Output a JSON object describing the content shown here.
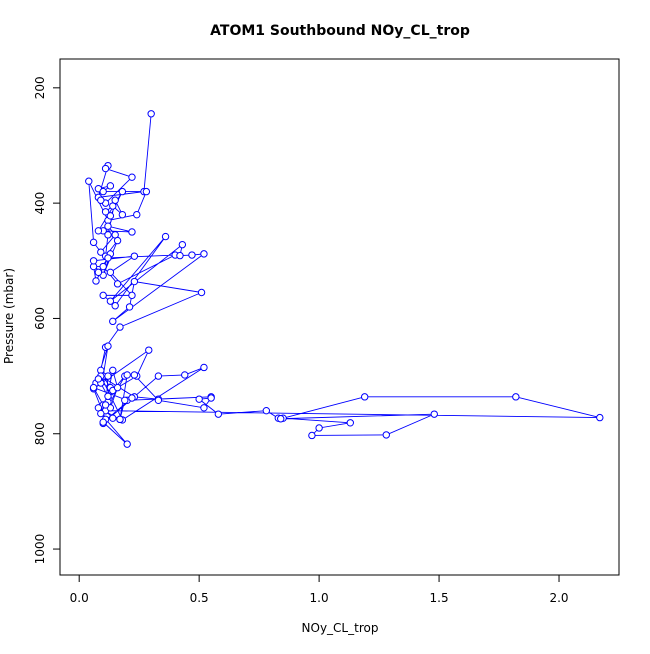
{
  "chart_data": {
    "type": "line",
    "title": "ATOM1 Southbound NOy_CL_trop",
    "xlabel": "NOy_CL_trop",
    "ylabel": "Pressure (mbar)",
    "xlim": [
      -0.08,
      2.25
    ],
    "ylim": [
      1045,
      150
    ],
    "y_reversed": true,
    "grid": false,
    "legend": "none",
    "x_ticks": [
      {
        "value": 0.0,
        "label": "0.0"
      },
      {
        "value": 0.5,
        "label": "0.5"
      },
      {
        "value": 1.0,
        "label": "1.0"
      },
      {
        "value": 1.5,
        "label": "1.5"
      },
      {
        "value": 2.0,
        "label": "2.0"
      }
    ],
    "y_ticks": [
      {
        "value": 200,
        "label": "200"
      },
      {
        "value": 400,
        "label": "400"
      },
      {
        "value": 600,
        "label": "600"
      },
      {
        "value": 800,
        "label": "800"
      },
      {
        "value": 1000,
        "label": "1000"
      }
    ],
    "colors": {
      "series": "#0000ff",
      "axis": "#000000"
    },
    "series": [
      {
        "x": [
          0.3,
          0.27,
          0.08,
          0.12,
          0.11,
          0.22,
          0.11,
          0.09,
          0.08,
          0.13,
          0.1,
          0.28,
          0.24,
          0.12,
          0.04,
          0.06,
          0.09,
          0.15,
          0.12,
          0.22,
          0.1,
          0.08,
          0.18,
          0.13,
          0.11,
          0.14,
          0.18,
          0.15,
          0.12,
          0.11,
          0.16,
          0.1,
          0.13,
          0.07,
          0.06,
          0.1,
          0.16,
          0.4,
          0.12,
          0.08,
          0.06,
          0.23,
          0.13,
          0.22,
          0.1,
          0.15,
          0.36,
          0.13,
          0.43,
          0.42,
          0.47,
          0.52,
          0.14,
          0.21,
          0.23,
          0.51,
          0.17,
          0.11,
          0.09,
          0.07,
          0.12,
          0.1,
          0.13,
          0.09,
          0.12,
          0.11,
          0.19,
          0.14,
          0.24,
          0.29,
          0.06,
          0.11,
          0.1,
          0.33,
          0.44,
          0.52,
          0.18,
          0.09,
          0.23,
          0.33,
          0.55,
          0.2,
          0.06,
          0.1,
          0.08,
          0.17,
          0.2,
          0.23,
          0.33,
          0.52,
          0.55,
          0.5,
          0.58,
          0.78,
          0.83,
          0.85,
          1.13,
          1.0,
          0.97,
          1.28,
          1.48,
          0.84,
          1.19,
          1.82,
          2.17,
          0.11,
          0.14,
          0.17,
          0.19,
          0.22,
          0.1,
          0.2,
          0.09,
          0.12,
          0.13,
          0.16,
          0.14,
          0.11,
          0.12,
          0.08
        ],
        "y": [
          245,
          380,
          390,
          335,
          340,
          355,
          400,
          395,
          375,
          370,
          380,
          380,
          420,
          430,
          362,
          468,
          485,
          455,
          440,
          450,
          448,
          448,
          380,
          422,
          415,
          405,
          420,
          395,
          455,
          492,
          465,
          525,
          488,
          535,
          510,
          510,
          540,
          490,
          495,
          520,
          500,
          492,
          520,
          560,
          560,
          578,
          458,
          570,
          472,
          491,
          490,
          488,
          605,
          580,
          536,
          555,
          615,
          650,
          690,
          712,
          648,
          700,
          720,
          712,
          700,
          760,
          700,
          725,
          700,
          655,
          722,
          775,
          782,
          700,
          698,
          685,
          776,
          700,
          736,
          740,
          736,
          742,
          720,
          750,
          755,
          775,
          698,
          698,
          742,
          755,
          738,
          740,
          766,
          760,
          773,
          773,
          781,
          790,
          803,
          802,
          766,
          774,
          736,
          736,
          772,
          760,
          773,
          775,
          742,
          738,
          780,
          818,
          765,
          745,
          755,
          720,
          690,
          750,
          735,
          705
        ]
      }
    ]
  }
}
